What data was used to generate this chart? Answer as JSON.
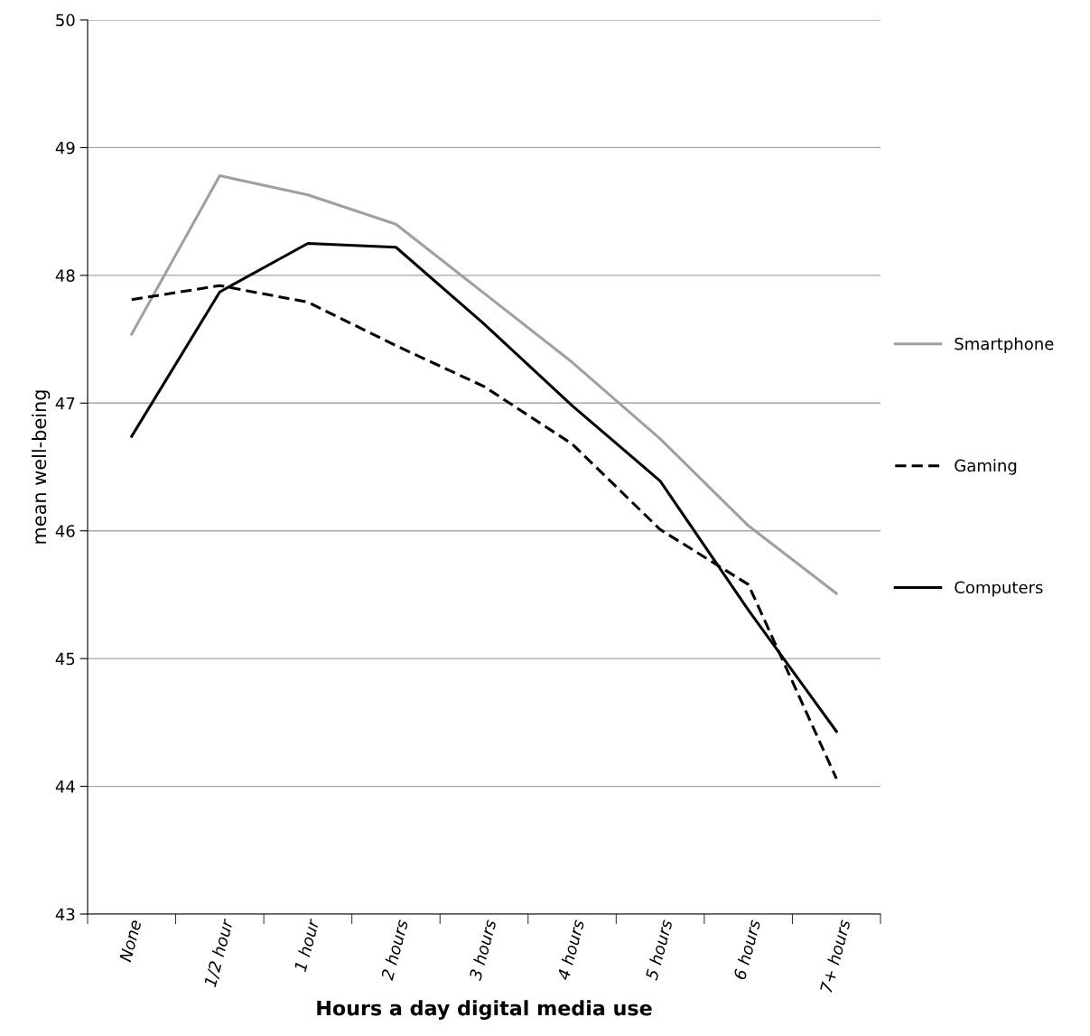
{
  "chart_data": {
    "type": "line",
    "xlabel": "Hours a day digital media use",
    "ylabel": "mean well-being",
    "categories": [
      "None",
      "1/2 hour",
      "1 hour",
      "2 hours",
      "3 hours",
      "4 hours",
      "5 hours",
      "6 hours",
      "7+ hours"
    ],
    "series": [
      {
        "name": "Smartphone",
        "color": "#a0a0a0",
        "line_style": "solid",
        "values": [
          47.54,
          48.78,
          48.63,
          48.4,
          47.86,
          47.32,
          46.72,
          46.04,
          45.51
        ]
      },
      {
        "name": "Gaming",
        "color": "#000000",
        "line_style": "dashed",
        "values": [
          47.81,
          47.92,
          47.79,
          47.45,
          47.13,
          46.68,
          46.01,
          45.58,
          44.06
        ]
      },
      {
        "name": "Computers",
        "color": "#000000",
        "line_style": "solid",
        "values": [
          46.74,
          47.87,
          48.25,
          48.22,
          47.62,
          46.98,
          46.39,
          45.38,
          44.43
        ]
      }
    ],
    "ylim": [
      43,
      50
    ],
    "yticks": [
      43,
      44,
      45,
      46,
      47,
      48,
      49,
      50
    ],
    "grid": "y",
    "legend": "right",
    "marker": "none"
  }
}
